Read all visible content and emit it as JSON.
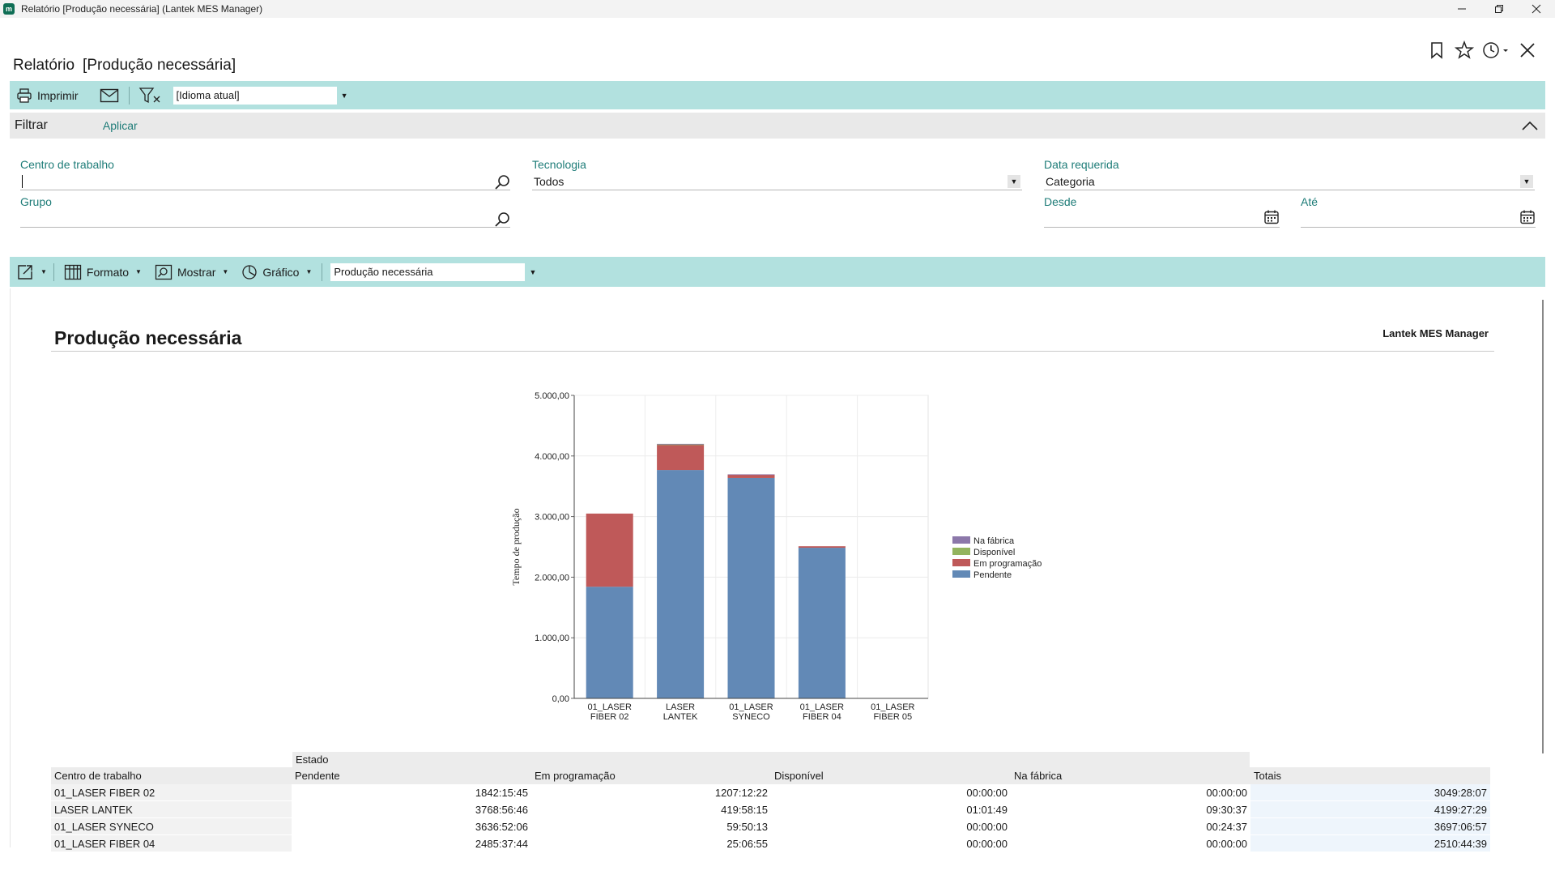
{
  "window": {
    "app_logo": "m",
    "title": "Relatório  [Produção necessária] (Lantek MES Manager)",
    "controls": [
      "minimize",
      "restore",
      "close"
    ]
  },
  "page": {
    "title_prefix": "Relatório",
    "title_bracket": "[Produção necessária]",
    "top_icons": [
      "bookmark-icon",
      "star-icon",
      "history-icon",
      "close-icon"
    ]
  },
  "toolbar1": {
    "print_label": "Imprimir",
    "language_select": "[Idioma atual]"
  },
  "filter": {
    "label": "Filtrar",
    "apply_label": "Aplicar",
    "fields": {
      "work_center": {
        "label": "Centro de trabalho",
        "value": ""
      },
      "group": {
        "label": "Grupo",
        "value": ""
      },
      "technology": {
        "label": "Tecnologia",
        "value": "Todos"
      },
      "required_date": {
        "label": "Data requerida",
        "value": "Categoria"
      },
      "from": {
        "label": "Desde",
        "value": ""
      },
      "to": {
        "label": "Até",
        "value": ""
      }
    }
  },
  "toolbar2": {
    "format_label": "Formato",
    "show_label": "Mostrar",
    "chart_label": "Gráfico",
    "report_select": "Produção necessária"
  },
  "report": {
    "title": "Produção necessária",
    "brand": "Lantek MES Manager"
  },
  "chart_data": {
    "type": "bar",
    "stacked": true,
    "categories": [
      "01_LASER FIBER 02",
      "LASER LANTEK",
      "01_LASER SYNECO",
      "01_LASER FIBER 04",
      "01_LASER FIBER 05"
    ],
    "category_lines": [
      [
        "01_LASER",
        "FIBER 02"
      ],
      [
        "LASER",
        "LANTEK"
      ],
      [
        "01_LASER",
        "SYNECO"
      ],
      [
        "01_LASER",
        "FIBER 04"
      ],
      [
        "01_LASER",
        "FIBER 05"
      ]
    ],
    "series": [
      {
        "name": "Pendente",
        "color": "#6289b6",
        "values": [
          1842.26,
          3768.95,
          3636.87,
          2485.62,
          0
        ]
      },
      {
        "name": "Em programação",
        "color": "#bf5959",
        "values": [
          1207.2,
          419.97,
          59.84,
          25.11,
          0
        ]
      },
      {
        "name": "Disponível",
        "color": "#93b45f",
        "values": [
          0,
          1.03,
          0,
          0,
          0
        ]
      },
      {
        "name": "Na fábrica",
        "color": "#8c78aa",
        "values": [
          0,
          9.51,
          0.41,
          0,
          0
        ]
      }
    ],
    "legend_order": [
      "Na fábrica",
      "Disponível",
      "Em programação",
      "Pendente"
    ],
    "ylabel": "Tempo de produção",
    "xlabel": "",
    "ylim": [
      0,
      5000
    ],
    "yticks": [
      0,
      1000,
      2000,
      3000,
      4000,
      5000
    ],
    "ytick_labels": [
      "0,00",
      "1.000,00",
      "2.000,00",
      "3.000,00",
      "4.000,00",
      "5.000,00"
    ],
    "grid": true,
    "legend_position": "right"
  },
  "table": {
    "group_header": "Estado",
    "columns": [
      "Centro de trabalho",
      "Pendente",
      "Em programação",
      "Disponível",
      "Na fábrica",
      "Totais"
    ],
    "rows": [
      [
        "01_LASER FIBER 02",
        "1842:15:45",
        "1207:12:22",
        "00:00:00",
        "00:00:00",
        "3049:28:07"
      ],
      [
        "LASER LANTEK",
        "3768:56:46",
        "419:58:15",
        "01:01:49",
        "09:30:37",
        "4199:27:29"
      ],
      [
        "01_LASER SYNECO",
        "3636:52:06",
        "59:50:13",
        "00:00:00",
        "00:24:37",
        "3697:06:57"
      ],
      [
        "01_LASER FIBER 04",
        "2485:37:44",
        "25:06:55",
        "00:00:00",
        "00:00:00",
        "2510:44:39"
      ]
    ]
  }
}
